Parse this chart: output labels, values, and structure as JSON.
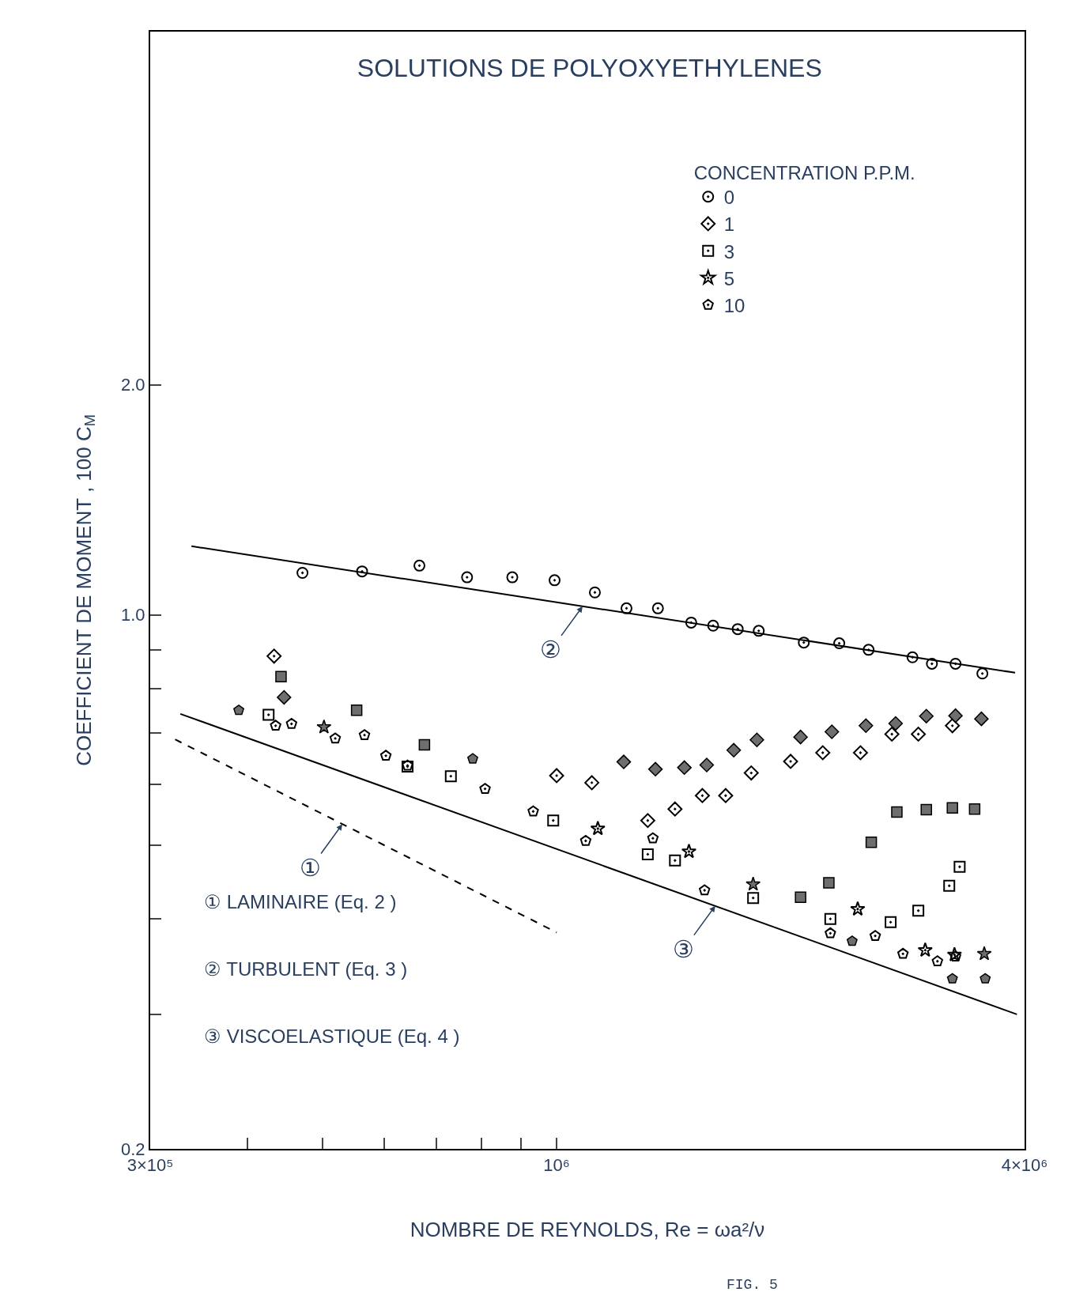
{
  "chart_data": {
    "type": "scatter",
    "title": "SOLUTIONS DE POLYOXYETHYLENES",
    "xlabel": "NOMBRE DE REYNOLDS, Re = ωa²/ν",
    "ylabel": "COEFFICIENT DE MOMENT , 100 C$_{M}$",
    "legend_title": "CONCENTRATION P.P.M.",
    "legend": "top",
    "log": "xy",
    "xlim": [
      300000,
      4000000
    ],
    "xticks": [
      {
        "value": 300000,
        "label": "3×10⁵"
      },
      {
        "value": 400000,
        "label": null
      },
      {
        "value": 500000,
        "label": null
      },
      {
        "value": 600000,
        "label": null
      },
      {
        "value": 700000,
        "label": null
      },
      {
        "value": 800000,
        "label": null
      },
      {
        "value": 900000,
        "label": null
      },
      {
        "value": 1000000,
        "label": "10⁶"
      },
      {
        "value": 4000000,
        "label": "4×10⁶"
      }
    ],
    "ylim": [
      0.2,
      5.8
    ],
    "yticks": [
      0.2,
      {
        "value": 0.3,
        "label": null
      },
      {
        "value": 0.4,
        "label": null
      },
      {
        "value": 0.5,
        "label": null
      },
      {
        "value": 0.6,
        "label": null
      },
      {
        "value": 0.7,
        "label": null
      },
      {
        "value": 0.8,
        "label": null
      },
      {
        "value": 0.9,
        "label": null
      },
      {
        "value": 1.0,
        "label": "1.0"
      },
      {
        "value": 2.0,
        "label": "2.0"
      }
    ],
    "series": [
      {
        "name": "0",
        "color": "#000000",
        "marker": "circle",
        "x": [
          471000,
          562000,
          666000,
          767000,
          877000,
          994000,
          1120000,
          1230000,
          1350000,
          1490000,
          1590000,
          1710000,
          1820000,
          2080000,
          2310000,
          2520000,
          2870000,
          3040000,
          3260000,
          3530000
        ],
        "values": [
          1.135,
          1.14,
          1.16,
          1.12,
          1.12,
          1.11,
          1.07,
          1.02,
          1.02,
          0.977,
          0.968,
          0.958,
          0.953,
          0.92,
          0.918,
          0.9,
          0.88,
          0.863,
          0.863,
          0.838
        ]
      },
      {
        "name": "1",
        "color": "#000000",
        "marker": "diamond",
        "x": [
          433000,
          1000000,
          1110000,
          1310000,
          1420000,
          1540000,
          1650000,
          1780000,
          2000000,
          2200000,
          2460000,
          2700000,
          2920000,
          3230000
        ],
        "values": [
          0.883,
          0.616,
          0.603,
          0.538,
          0.557,
          0.58,
          0.58,
          0.621,
          0.643,
          0.66,
          0.66,
          0.698,
          0.698,
          0.716
        ]
      },
      {
        "name": "3",
        "color": "#000000",
        "marker": "square",
        "x": [
          426000,
          643000,
          731000,
          990000,
          1310000,
          1420000,
          1790000,
          2250000,
          2690000,
          2920000,
          3200000,
          3300000
        ],
        "values": [
          0.74,
          0.633,
          0.615,
          0.538,
          0.486,
          0.477,
          0.426,
          0.4,
          0.396,
          0.41,
          0.442,
          0.468
        ]
      },
      {
        "name": "5",
        "color": "#000000",
        "marker": "star",
        "x": [
          1130000,
          1480000,
          2440000,
          2980000,
          3250000
        ],
        "values": [
          0.525,
          0.49,
          0.412,
          0.364,
          0.359
        ]
      },
      {
        "name": "10",
        "color": "#000000",
        "x": [
          435000,
          456000,
          519000,
          566000,
          603000,
          643000,
          809000,
          933000,
          1090000,
          1330000,
          1550000,
          2250000,
          2570000,
          2790000,
          3090000,
          3260000
        ],
        "values": [
          0.716,
          0.72,
          0.689,
          0.696,
          0.654,
          0.635,
          0.592,
          0.553,
          0.506,
          0.51,
          0.436,
          0.383,
          0.38,
          0.36,
          0.352,
          0.357
        ]
      },
      {
        "color": "#6e6e6e",
        "marker": "diamond",
        "x": [
          446000,
          1220000,
          1340000,
          1460000,
          1560000,
          1690000,
          1810000,
          2060000,
          2260000,
          2500000,
          2730000,
          2990000,
          3260000,
          3520000
        ],
        "values": [
          0.78,
          0.642,
          0.628,
          0.631,
          0.636,
          0.665,
          0.686,
          0.692,
          0.703,
          0.716,
          0.721,
          0.737,
          0.738,
          0.731
        ]
      },
      {
        "color": "#6e6e6e",
        "marker": "square",
        "x": [
          442000,
          553000,
          676000,
          2060000,
          2240000,
          2540000,
          2740000,
          2990000,
          3230000,
          3450000
        ],
        "values": [
          0.83,
          0.75,
          0.676,
          0.427,
          0.446,
          0.504,
          0.552,
          0.556,
          0.559,
          0.557
        ]
      },
      {
        "color": "#6e6e6e",
        "marker": "star",
        "x": [
          502000,
          1790000,
          3550000
        ],
        "values": [
          0.713,
          0.444,
          0.36
        ]
      },
      {
        "color": "#6e6e6e",
        "x": [
          390000,
          780000,
          2400000,
          3230000,
          3560000
        ],
        "values": [
          0.75,
          0.648,
          0.374,
          0.334,
          0.334
        ]
      },
      {
        "type": "line",
        "color": "#000000",
        "line_style": "solid",
        "x": [
          339000,
          3890000
        ],
        "values": [
          1.23,
          0.84
        ]
      },
      {
        "type": "line",
        "color": "#000000",
        "line_style": "solid",
        "x": [
          328000,
          3910000
        ],
        "values": [
          0.742,
          0.3
        ]
      },
      {
        "type": "line",
        "color": "#000000",
        "line_style": "dashed",
        "x": [
          323000,
          1000000
        ],
        "values": [
          0.687,
          0.384
        ]
      }
    ],
    "annotations": [
      {
        "text": "①",
        "x": 530000,
        "y": 0.532
      },
      {
        "text": "②",
        "x": 1080000,
        "y": 1.026
      },
      {
        "text": "③",
        "x": 1600000,
        "y": 0.416
      },
      "① LAMINAIRE (Eq. 2 )",
      "② TURBULENT (Eq. 3 )",
      "③ VISCOELASTIQUE (Eq. 4 )",
      "FIG. 5"
    ]
  }
}
